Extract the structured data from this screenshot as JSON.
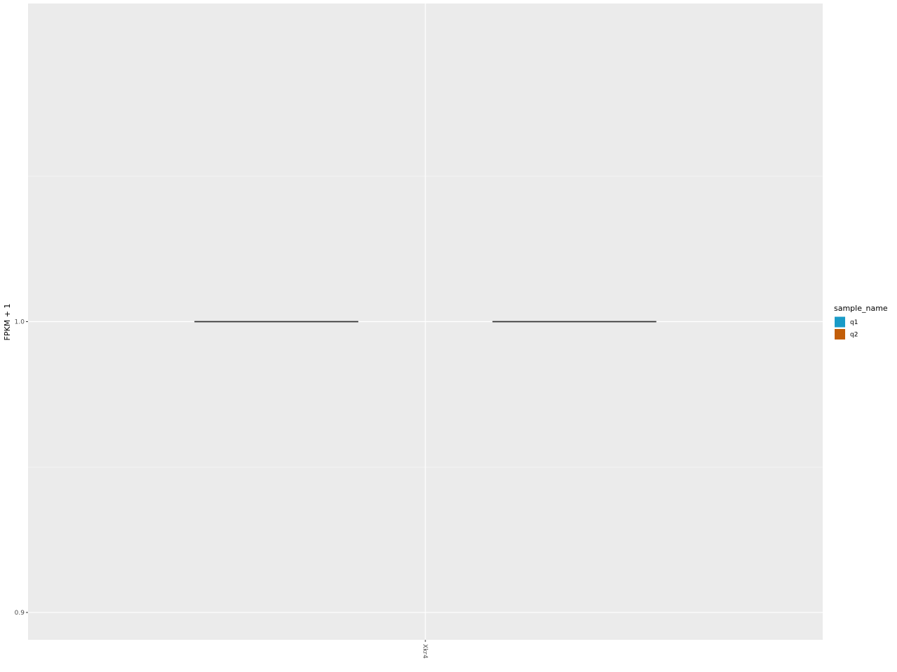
{
  "chart_data": {
    "type": "box",
    "categories": [
      "Xkr4"
    ],
    "ylabel": "FPKM + 1",
    "xlabel": "",
    "ylim": [
      0.8906,
      1.1094
    ],
    "yticks": [
      0.9,
      1.0
    ],
    "ytick_labels": [
      "0.9",
      "1.0"
    ],
    "grid": true,
    "legend": {
      "title": "sample_name",
      "placement": "right",
      "entries": [
        {
          "name": "q1",
          "color": "#1A9BC7"
        },
        {
          "name": "q2",
          "color": "#C25E09"
        }
      ]
    },
    "series": [
      {
        "name": "q1",
        "values": [
          {
            "category": "Xkr4",
            "min": 1.0,
            "q1": 1.0,
            "median": 1.0,
            "q3": 1.0,
            "max": 1.0
          }
        ]
      },
      {
        "name": "q2",
        "values": [
          {
            "category": "Xkr4",
            "min": 1.0,
            "q1": 1.0,
            "median": 1.0,
            "q3": 1.0,
            "max": 1.0
          }
        ]
      }
    ]
  }
}
